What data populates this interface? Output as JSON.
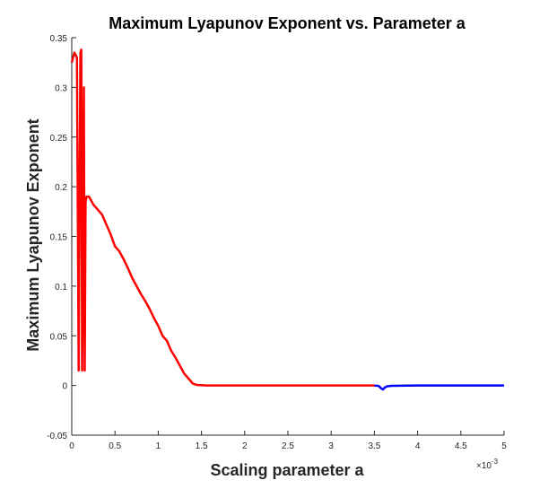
{
  "chart_data": {
    "type": "line",
    "title": "Maximum Lyapunov Exponent vs. Parameter a",
    "xlabel": "Scaling parameter a",
    "ylabel": "Maximum Lyapunov Exponent",
    "x_exponent_label": "×10",
    "x_exponent_power": "-3",
    "xlim": [
      0,
      5
    ],
    "ylim": [
      -0.05,
      0.35
    ],
    "xticks": [
      "0",
      "0.5",
      "1",
      "1.5",
      "2",
      "2.5",
      "3",
      "3.5",
      "4",
      "4.5",
      "5"
    ],
    "yticks": [
      "-0.05",
      "0",
      "0.05",
      "0.1",
      "0.15",
      "0.2",
      "0.25",
      "0.3",
      "0.35"
    ],
    "grid": false,
    "legend": "none",
    "series": [
      {
        "color": "#ff0000",
        "x": [
          0,
          0.03,
          0.06,
          0.08,
          0.1,
          0.11,
          0.12,
          0.14,
          0.15,
          0.16,
          0.17,
          0.2,
          0.25,
          0.3,
          0.35,
          0.4,
          0.45,
          0.5,
          0.55,
          0.6,
          0.65,
          0.7,
          0.75,
          0.8,
          0.85,
          0.9,
          0.95,
          1.0,
          1.05,
          1.1,
          1.15,
          1.2,
          1.25,
          1.3,
          1.35,
          1.4,
          1.45,
          1.5,
          1.55,
          1.6,
          2.0,
          2.5,
          3.0,
          3.5
        ],
        "y": [
          0.325,
          0.335,
          0.33,
          0.015,
          0.335,
          0.338,
          0.015,
          0.3,
          0.015,
          0.185,
          0.19,
          0.19,
          0.182,
          0.177,
          0.172,
          0.162,
          0.152,
          0.14,
          0.135,
          0.127,
          0.118,
          0.108,
          0.1,
          0.092,
          0.085,
          0.077,
          0.068,
          0.06,
          0.05,
          0.045,
          0.035,
          0.028,
          0.02,
          0.012,
          0.007,
          0.002,
          0.0005,
          0.0003,
          0.0,
          0.0,
          0.0,
          0.0,
          0.0,
          0.0
        ]
      },
      {
        "color": "#0000ff",
        "x": [
          3.5,
          3.55,
          3.58,
          3.6,
          3.62,
          3.65,
          3.7,
          4.0,
          4.5,
          5.0
        ],
        "y": [
          0.0,
          -0.0005,
          -0.003,
          -0.004,
          -0.002,
          -0.0008,
          -0.0003,
          0.0,
          0.0,
          0.0
        ]
      }
    ]
  }
}
